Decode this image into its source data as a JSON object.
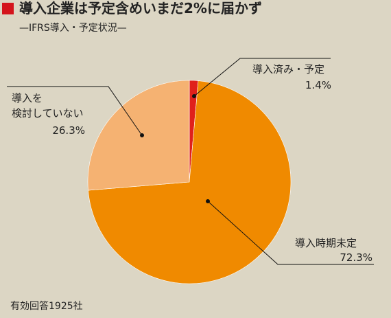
{
  "chart_data": {
    "type": "pie",
    "title": "導入企業は予定含めいまだ2%に届かず",
    "subtitle": "—IFRS導入・予定状況—",
    "note": "有効回答1925社",
    "categories": [
      "導入済み・予定",
      "導入時期未定",
      "導入を\n検討していない"
    ],
    "values": [
      1.4,
      72.3,
      26.3
    ],
    "value_labels": [
      "1.4%",
      "72.3%",
      "26.3%"
    ],
    "colors": [
      "#e0201b",
      "#f08a00",
      "#f5b272"
    ]
  }
}
